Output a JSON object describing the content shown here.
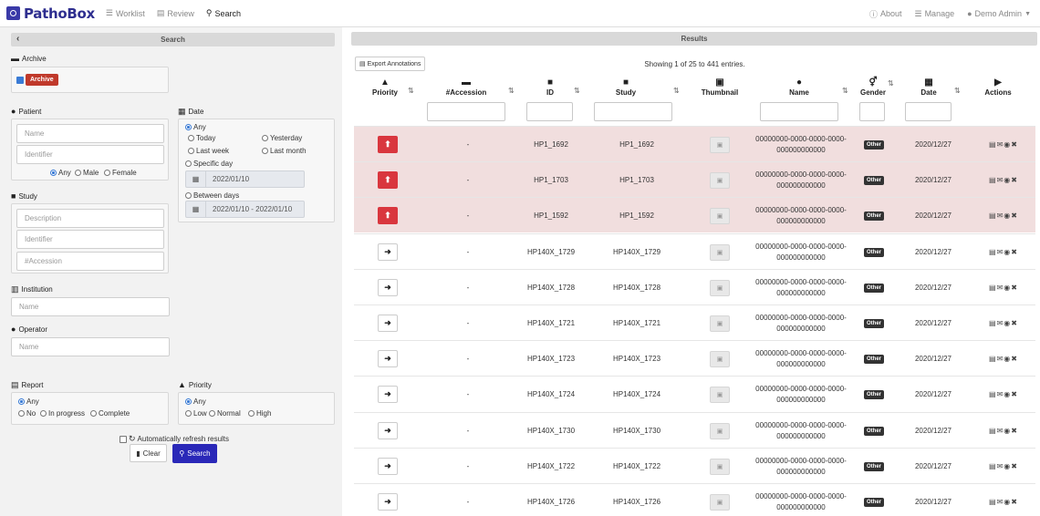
{
  "navbar": {
    "brand": "PathoBox",
    "links": [
      {
        "label": "Worklist",
        "icon": "list-icon"
      },
      {
        "label": "Review",
        "icon": "document-icon"
      },
      {
        "label": "Search",
        "icon": "search-icon"
      }
    ],
    "right_links": [
      {
        "label": "About",
        "icon": "info-icon"
      },
      {
        "label": "Manage",
        "icon": "list-icon"
      },
      {
        "label": "Demo Admin",
        "icon": "user-icon"
      }
    ]
  },
  "search_panel": {
    "title": "Search",
    "archive": {
      "label": "Archive",
      "checkbox_label": "Archive",
      "checked": true
    },
    "patient": {
      "label": "Patient",
      "name_placeholder": "Name",
      "identifier_placeholder": "Identifier",
      "gender_options": [
        "Any",
        "Male",
        "Female"
      ],
      "gender_selected": "Any"
    },
    "study": {
      "label": "Study",
      "description_placeholder": "Description",
      "identifier_placeholder": "Identifier",
      "accession_placeholder": "#Accession"
    },
    "institution": {
      "label": "Institution",
      "name_placeholder": "Name"
    },
    "operator": {
      "label": "Operator",
      "name_placeholder": "Name"
    },
    "date": {
      "label": "Date",
      "any": "Any",
      "today": "Today",
      "yesterday": "Yesterday",
      "last_week": "Last week",
      "last_month": "Last month",
      "specific_day": "Specific day",
      "specific_day_value": "2022/01/10",
      "between_days": "Between days",
      "between_days_value": "2022/01/10 - 2022/01/10",
      "selected": "Any"
    },
    "report": {
      "label": "Report",
      "options": [
        "Any",
        "No",
        "In progress",
        "Complete"
      ],
      "selected": "Any"
    },
    "priority": {
      "label": "Priority",
      "options": [
        "Any",
        "Low",
        "Normal",
        "High"
      ],
      "selected": "Any"
    },
    "auto_refresh_label": "Automatically refresh results",
    "auto_refresh_checked": false,
    "clear_label": "Clear",
    "search_label": "Search"
  },
  "results": {
    "title": "Results",
    "export_label": "Export Annotations",
    "showing": "Showing 1 of 25 to 441 entries.",
    "columns": {
      "priority": "Priority",
      "accession": "#Accession",
      "id": "ID",
      "study": "Study",
      "thumbnail": "Thumbnail",
      "name": "Name",
      "gender": "Gender",
      "date": "Date",
      "actions": "Actions"
    },
    "rows": [
      {
        "priority": "urgent",
        "accession": "-",
        "id": "HP1_1692",
        "study": "HP1_1692",
        "name_line1": "00000000-0000-0000-0000-",
        "name_line2": "000000000000",
        "gender": "Other",
        "date": "2020/12/27"
      },
      {
        "priority": "urgent",
        "accession": "-",
        "id": "HP1_1703",
        "study": "HP1_1703",
        "name_line1": "00000000-0000-0000-0000-",
        "name_line2": "000000000000",
        "gender": "Other",
        "date": "2020/12/27"
      },
      {
        "priority": "urgent",
        "accession": "-",
        "id": "HP1_1592",
        "study": "HP1_1592",
        "name_line1": "00000000-0000-0000-0000-",
        "name_line2": "000000000000",
        "gender": "Other",
        "date": "2020/12/27"
      },
      {
        "priority": "normal",
        "accession": "-",
        "id": "HP140X_1729",
        "study": "HP140X_1729",
        "name_line1": "00000000-0000-0000-0000-",
        "name_line2": "000000000000",
        "gender": "Other",
        "date": "2020/12/27"
      },
      {
        "priority": "normal",
        "accession": "-",
        "id": "HP140X_1728",
        "study": "HP140X_1728",
        "name_line1": "00000000-0000-0000-0000-",
        "name_line2": "000000000000",
        "gender": "Other",
        "date": "2020/12/27"
      },
      {
        "priority": "normal",
        "accession": "-",
        "id": "HP140X_1721",
        "study": "HP140X_1721",
        "name_line1": "00000000-0000-0000-0000-",
        "name_line2": "000000000000",
        "gender": "Other",
        "date": "2020/12/27"
      },
      {
        "priority": "normal",
        "accession": "-",
        "id": "HP140X_1723",
        "study": "HP140X_1723",
        "name_line1": "00000000-0000-0000-0000-",
        "name_line2": "000000000000",
        "gender": "Other",
        "date": "2020/12/27"
      },
      {
        "priority": "normal",
        "accession": "-",
        "id": "HP140X_1724",
        "study": "HP140X_1724",
        "name_line1": "00000000-0000-0000-0000-",
        "name_line2": "000000000000",
        "gender": "Other",
        "date": "2020/12/27"
      },
      {
        "priority": "normal",
        "accession": "-",
        "id": "HP140X_1730",
        "study": "HP140X_1730",
        "name_line1": "00000000-0000-0000-0000-",
        "name_line2": "000000000000",
        "gender": "Other",
        "date": "2020/12/27"
      },
      {
        "priority": "normal",
        "accession": "-",
        "id": "HP140X_1722",
        "study": "HP140X_1722",
        "name_line1": "00000000-0000-0000-0000-",
        "name_line2": "000000000000",
        "gender": "Other",
        "date": "2020/12/27"
      },
      {
        "priority": "normal",
        "accession": "-",
        "id": "HP140X_1726",
        "study": "HP140X_1726",
        "name_line1": "00000000-0000-0000-0000-",
        "name_line2": "000000000000",
        "gender": "Other",
        "date": "2020/12/27"
      }
    ]
  },
  "colors": {
    "brand": "#2e2e8f",
    "urgent": "#d9363e",
    "urgent_row": "#f1dede",
    "search_button": "#2a28b8",
    "archive": "#c0392b"
  }
}
